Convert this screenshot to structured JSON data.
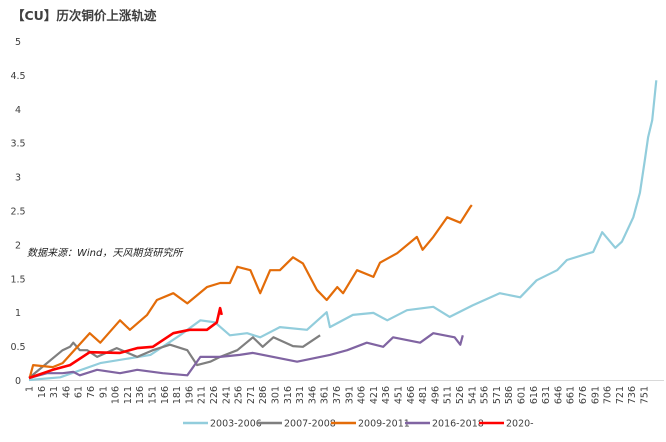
{
  "chart_data": {
    "type": "line",
    "title": "【CU】历次铜价上涨轨迹",
    "annotation": "数据来源：Wind，天风期货研究所",
    "xlabel": "",
    "ylabel": "",
    "ylim": [
      0,
      5
    ],
    "xlim": [
      1,
      770
    ],
    "yticks": [
      "0",
      "0.5",
      "1",
      "1.5",
      "2",
      "2.5",
      "3",
      "3.5",
      "4",
      "4.5",
      "5"
    ],
    "xticks": [
      "1",
      "16",
      "31",
      "46",
      "61",
      "76",
      "91",
      "106",
      "121",
      "136",
      "151",
      "166",
      "181",
      "196",
      "211",
      "226",
      "241",
      "256",
      "271",
      "286",
      "301",
      "316",
      "331",
      "346",
      "361",
      "376",
      "391",
      "406",
      "421",
      "436",
      "451",
      "466",
      "481",
      "496",
      "511",
      "526",
      "541",
      "556",
      "571",
      "586",
      "601",
      "616",
      "631",
      "646",
      "661",
      "676",
      "691",
      "706",
      "721",
      "736",
      "751"
    ],
    "grid": false,
    "legend_position": "bottom",
    "series": [
      {
        "name": "2003-2006",
        "color": "#92cddc",
        "points": [
          [
            1,
            0
          ],
          [
            39,
            0.04
          ],
          [
            88,
            0.25
          ],
          [
            149,
            0.37
          ],
          [
            185,
            0.66
          ],
          [
            210,
            0.88
          ],
          [
            228,
            0.85
          ],
          [
            246,
            0.66
          ],
          [
            267,
            0.69
          ],
          [
            283,
            0.63
          ],
          [
            307,
            0.78
          ],
          [
            340,
            0.74
          ],
          [
            364,
            1.0
          ],
          [
            368,
            0.78
          ],
          [
            396,
            0.96
          ],
          [
            421,
            0.99
          ],
          [
            438,
            0.88
          ],
          [
            462,
            1.03
          ],
          [
            494,
            1.08
          ],
          [
            514,
            0.93
          ],
          [
            542,
            1.1
          ],
          [
            575,
            1.28
          ],
          [
            600,
            1.22
          ],
          [
            620,
            1.47
          ],
          [
            645,
            1.62
          ],
          [
            657,
            1.77
          ],
          [
            689,
            1.89
          ],
          [
            700,
            2.18
          ],
          [
            716,
            1.95
          ],
          [
            724,
            2.04
          ],
          [
            738,
            2.4
          ],
          [
            746,
            2.76
          ],
          [
            752,
            3.24
          ],
          [
            756,
            3.58
          ],
          [
            761,
            3.83
          ],
          [
            766,
            4.42
          ]
        ]
      },
      {
        "name": "2007-2008",
        "color": "#7f7f7f",
        "points": [
          [
            1,
            0.03
          ],
          [
            42,
            0.44
          ],
          [
            51,
            0.49
          ],
          [
            55,
            0.55
          ],
          [
            63,
            0.44
          ],
          [
            72,
            0.44
          ],
          [
            84,
            0.34
          ],
          [
            108,
            0.47
          ],
          [
            133,
            0.34
          ],
          [
            152,
            0.44
          ],
          [
            173,
            0.52
          ],
          [
            194,
            0.44
          ],
          [
            206,
            0.22
          ],
          [
            222,
            0.27
          ],
          [
            234,
            0.34
          ],
          [
            255,
            0.44
          ],
          [
            274,
            0.63
          ],
          [
            286,
            0.49
          ],
          [
            299,
            0.63
          ],
          [
            323,
            0.5
          ],
          [
            335,
            0.49
          ],
          [
            356,
            0.66
          ]
        ]
      },
      {
        "name": "2009-2011",
        "color": "#e36c09",
        "points": [
          [
            2,
            0.04
          ],
          [
            6,
            0.22
          ],
          [
            30,
            0.19
          ],
          [
            42,
            0.25
          ],
          [
            75,
            0.69
          ],
          [
            88,
            0.55
          ],
          [
            112,
            0.88
          ],
          [
            124,
            0.74
          ],
          [
            145,
            0.96
          ],
          [
            157,
            1.18
          ],
          [
            177,
            1.28
          ],
          [
            194,
            1.13
          ],
          [
            218,
            1.37
          ],
          [
            234,
            1.43
          ],
          [
            246,
            1.43
          ],
          [
            255,
            1.67
          ],
          [
            271,
            1.62
          ],
          [
            283,
            1.28
          ],
          [
            295,
            1.62
          ],
          [
            307,
            1.62
          ],
          [
            323,
            1.81
          ],
          [
            335,
            1.72
          ],
          [
            352,
            1.33
          ],
          [
            364,
            1.18
          ],
          [
            377,
            1.37
          ],
          [
            384,
            1.28
          ],
          [
            401,
            1.62
          ],
          [
            421,
            1.52
          ],
          [
            429,
            1.73
          ],
          [
            450,
            1.87
          ],
          [
            474,
            2.11
          ],
          [
            481,
            1.92
          ],
          [
            494,
            2.11
          ],
          [
            511,
            2.4
          ],
          [
            527,
            2.32
          ],
          [
            539,
            2.55
          ],
          [
            541,
            2.58
          ]
        ]
      },
      {
        "name": "2016-2018",
        "color": "#8064a2",
        "points": [
          [
            1,
            0.03
          ],
          [
            23,
            0.1
          ],
          [
            42,
            0.1
          ],
          [
            55,
            0.12
          ],
          [
            63,
            0.07
          ],
          [
            84,
            0.15
          ],
          [
            112,
            0.1
          ],
          [
            133,
            0.15
          ],
          [
            164,
            0.1
          ],
          [
            194,
            0.07
          ],
          [
            210,
            0.34
          ],
          [
            234,
            0.34
          ],
          [
            258,
            0.37
          ],
          [
            274,
            0.4
          ],
          [
            328,
            0.27
          ],
          [
            368,
            0.37
          ],
          [
            389,
            0.44
          ],
          [
            413,
            0.55
          ],
          [
            433,
            0.49
          ],
          [
            445,
            0.63
          ],
          [
            478,
            0.55
          ],
          [
            494,
            0.69
          ],
          [
            520,
            0.63
          ],
          [
            527,
            0.52
          ],
          [
            530,
            0.66
          ]
        ]
      },
      {
        "name": "2020-",
        "color": "#ff0000",
        "points": [
          [
            1,
            0.03
          ],
          [
            30,
            0.15
          ],
          [
            51,
            0.22
          ],
          [
            75,
            0.41
          ],
          [
            112,
            0.4
          ],
          [
            133,
            0.47
          ],
          [
            152,
            0.49
          ],
          [
            177,
            0.69
          ],
          [
            197,
            0.74
          ],
          [
            218,
            0.74
          ],
          [
            230,
            0.85
          ],
          [
            234,
            1.06
          ],
          [
            236,
            0.96
          ]
        ]
      }
    ]
  }
}
